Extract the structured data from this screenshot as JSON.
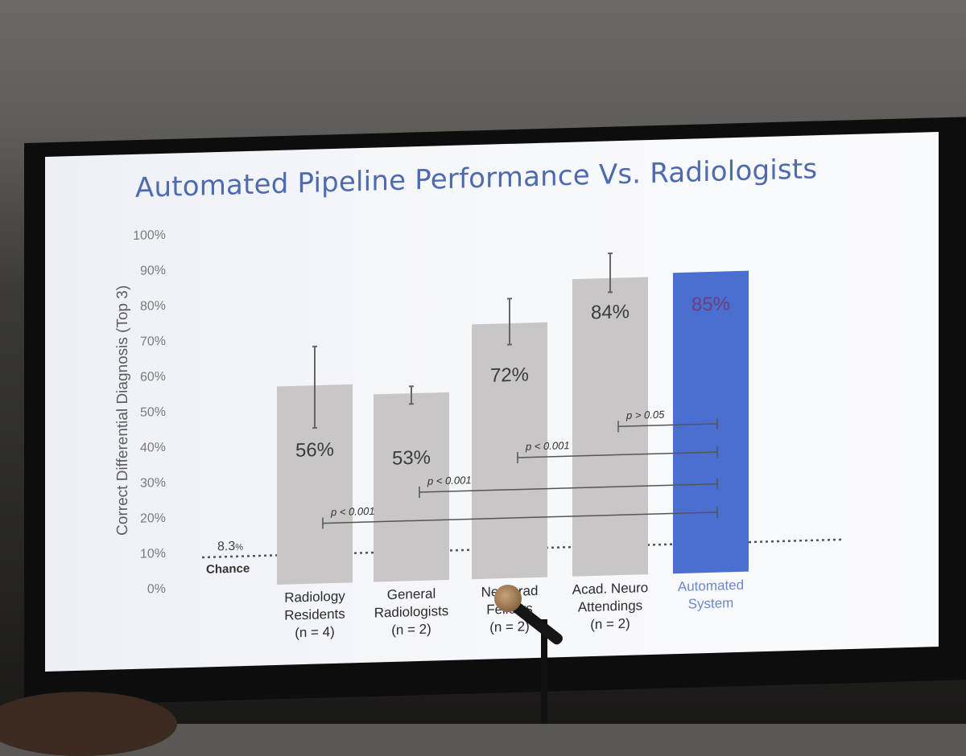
{
  "slide": {
    "title": "Automated Pipeline Performance Vs. Radiologists"
  },
  "chart_data": {
    "type": "bar",
    "title": "Automated Pipeline Performance Vs. Radiologists",
    "ylabel": "Correct Differential Diagnosis (Top 3)",
    "xlabel": "",
    "ylim": [
      0,
      100
    ],
    "yticks": [
      0,
      10,
      20,
      30,
      40,
      50,
      60,
      70,
      80,
      90,
      100
    ],
    "ytick_labels": [
      "0%",
      "10%",
      "20%",
      "30%",
      "40%",
      "50%",
      "60%",
      "70%",
      "80%",
      "90%",
      "100%"
    ],
    "categories": [
      [
        "Radiology",
        "Residents",
        "(n = 4)"
      ],
      [
        "General",
        "Radiologists",
        "(n = 2)"
      ],
      [
        "Neurorad",
        "Fellows",
        "(n = 2)"
      ],
      [
        "Acad. Neuro",
        "Attendings",
        "(n = 2)"
      ],
      [
        "Automated",
        "System"
      ]
    ],
    "values": [
      56,
      53,
      72,
      84,
      85
    ],
    "value_labels": [
      "56%",
      "53%",
      "72%",
      "84%",
      "85%"
    ],
    "error_bars": [
      [
        44,
        67
      ],
      [
        50,
        55
      ],
      [
        66,
        79
      ],
      [
        80,
        91
      ],
      null
    ],
    "bar_colors": [
      "#c8c6c7",
      "#c8c6c7",
      "#c8c6c7",
      "#c8c6c7",
      "#4a6fd0"
    ],
    "label_colors": [
      "#3b3b3b",
      "#3b3b3b",
      "#3b3b3b",
      "#3b3b3b",
      "#6b3f7c"
    ],
    "category_colors": [
      "#2b2b2b",
      "#2b2b2b",
      "#2b2b2b",
      "#2b2b2b",
      "#6d87c9"
    ],
    "chance": {
      "value": 8.3,
      "label_value": "8.3",
      "label_suffix": "%",
      "label": "Chance"
    },
    "comparisons": [
      {
        "from": 3,
        "to": 4,
        "y": 42,
        "label": "p > 0.05"
      },
      {
        "from": 2,
        "to": 4,
        "y": 34,
        "label": "p < 0.001"
      },
      {
        "from": 1,
        "to": 4,
        "y": 25,
        "label": "p < 0.001"
      },
      {
        "from": 0,
        "to": 4,
        "y": 17,
        "label": "p < 0.001"
      }
    ]
  }
}
